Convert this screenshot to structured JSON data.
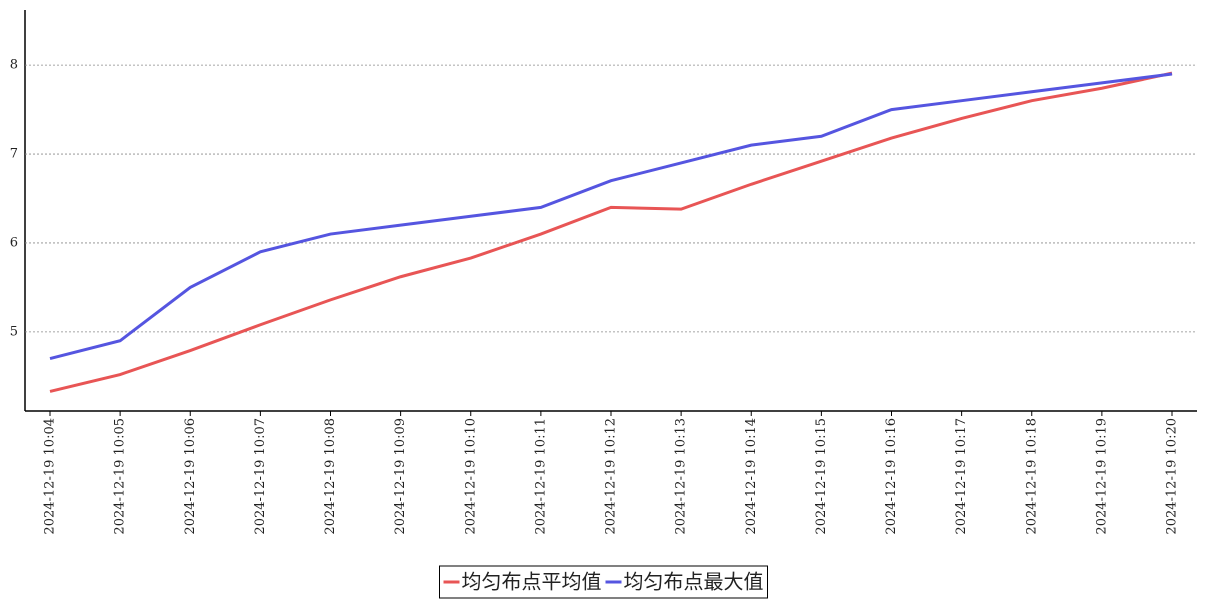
{
  "chart_data": {
    "type": "line",
    "categories": [
      "2024-12-19 10:04",
      "2024-12-19 10:05",
      "2024-12-19 10:06",
      "2024-12-19 10:07",
      "2024-12-19 10:08",
      "2024-12-19 10:09",
      "2024-12-19 10:10",
      "2024-12-19 10:11",
      "2024-12-19 10:12",
      "2024-12-19 10:13",
      "2024-12-19 10:14",
      "2024-12-19 10:15",
      "2024-12-19 10:16",
      "2024-12-19 10:17",
      "2024-12-19 10:18",
      "2024-12-19 10:19",
      "2024-12-19 10:20"
    ],
    "series": [
      {
        "name": "均匀布点平均值",
        "color": "#e85555",
        "values": [
          4.33,
          4.52,
          4.79,
          5.08,
          5.36,
          5.62,
          5.83,
          6.1,
          6.4,
          6.38,
          6.66,
          6.92,
          7.18,
          7.4,
          7.6,
          7.74,
          7.91
        ]
      },
      {
        "name": "均匀布点最大值",
        "color": "#5555e0",
        "values": [
          4.7,
          4.9,
          5.5,
          5.9,
          6.1,
          6.2,
          6.3,
          6.4,
          6.7,
          6.9,
          7.1,
          7.2,
          7.5,
          7.6,
          7.7,
          7.8,
          7.9
        ]
      }
    ],
    "ylim": [
      4.11,
      8.62
    ],
    "yticks": [
      5,
      6,
      7,
      8
    ],
    "grid": true,
    "legend": "bottom"
  }
}
